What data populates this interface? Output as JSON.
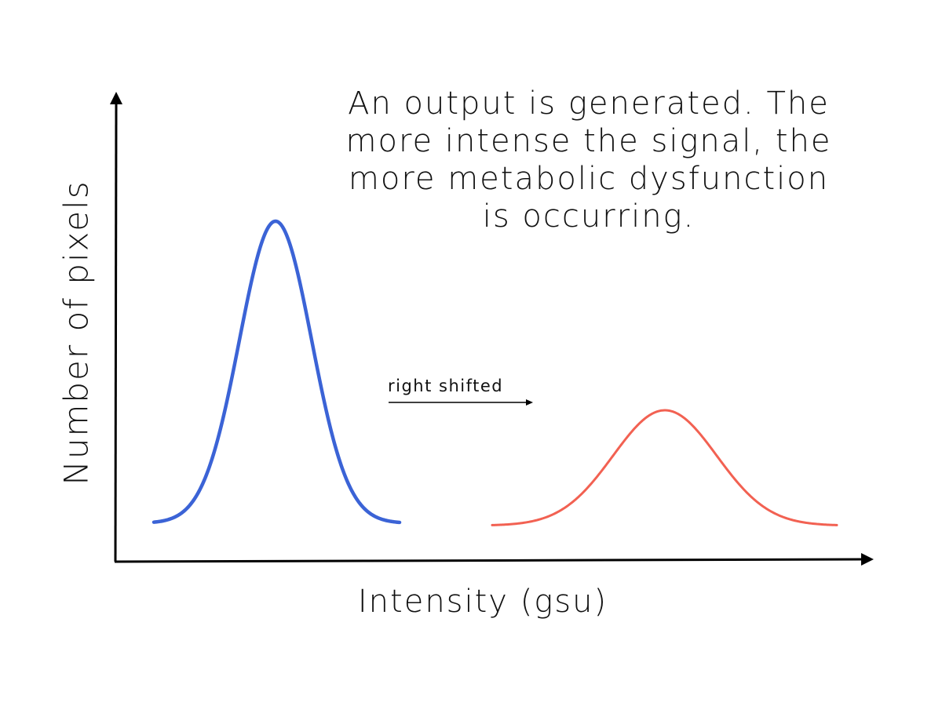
{
  "caption": {
    "lines": [
      "An output is generated. The",
      "more intense the signal, the",
      "more metabolic dysfunction",
      "is occurring."
    ]
  },
  "axes": {
    "x_label": "Intensity (gsu)",
    "y_label": "Number of pixels"
  },
  "annotation": {
    "shift_label": "right shifted"
  },
  "colors": {
    "baseline_curve": "#3B63D6",
    "shifted_curve": "#F26152",
    "axis": "#000000"
  }
}
